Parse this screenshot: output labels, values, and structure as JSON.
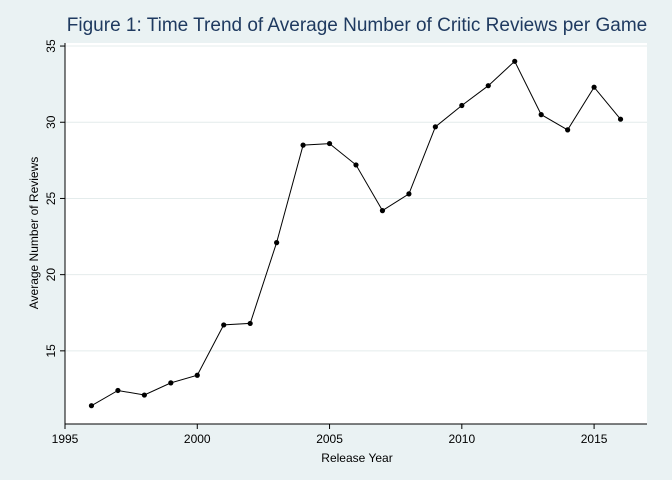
{
  "chart_data": {
    "type": "line",
    "title": "Figure 1: Time Trend of Average Number of Critic Reviews per Game",
    "xlabel": "Release Year",
    "ylabel": "Average Number of Reviews",
    "xlim": [
      1995,
      2017
    ],
    "ylim": [
      10.2,
      35.2
    ],
    "x_ticks": [
      1995,
      2000,
      2005,
      2010,
      2015
    ],
    "y_ticks": [
      15,
      20,
      25,
      30,
      35
    ],
    "grid": "horizontal",
    "series": [
      {
        "name": "",
        "color": "#000000",
        "x": [
          1996,
          1997,
          1998,
          1999,
          2000,
          2001,
          2002,
          2003,
          2004,
          2005,
          2006,
          2007,
          2008,
          2009,
          2010,
          2011,
          2012,
          2013,
          2014,
          2015,
          2016
        ],
        "y": [
          11.4,
          12.4,
          12.1,
          12.9,
          13.4,
          16.7,
          16.8,
          22.1,
          28.5,
          28.6,
          27.2,
          24.2,
          25.3,
          29.7,
          31.1,
          32.4,
          34.0,
          30.5,
          29.5,
          32.3,
          30.2
        ]
      }
    ]
  }
}
